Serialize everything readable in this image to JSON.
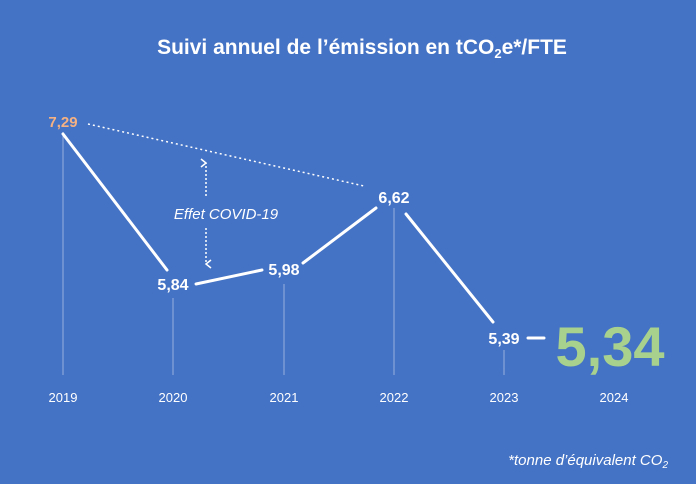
{
  "title": {
    "prefix": "Suivi annuel de l’émission en tCO",
    "sub": "2",
    "suffix": "e*/FTE"
  },
  "footnote": {
    "text": "*tonne d’équivalent CO",
    "sub": "2"
  },
  "colors": {
    "background": "#4472c4",
    "line": "#ffffff",
    "first_label": "#f4b183",
    "highlight": "#a9d18e"
  },
  "chart_data": {
    "type": "line",
    "categories": [
      "2019",
      "2020",
      "2021",
      "2022",
      "2023",
      "2024"
    ],
    "values": [
      7.29,
      5.84,
      5.98,
      6.62,
      5.39,
      5.34
    ],
    "value_labels": [
      "7,29",
      "5,84",
      "5,98",
      "6,62",
      "5,39",
      "5,34"
    ],
    "annotation": "Effet COVID-19",
    "trend_line": {
      "from": "2019",
      "to": "2022",
      "style": "dotted"
    },
    "grid": false
  }
}
